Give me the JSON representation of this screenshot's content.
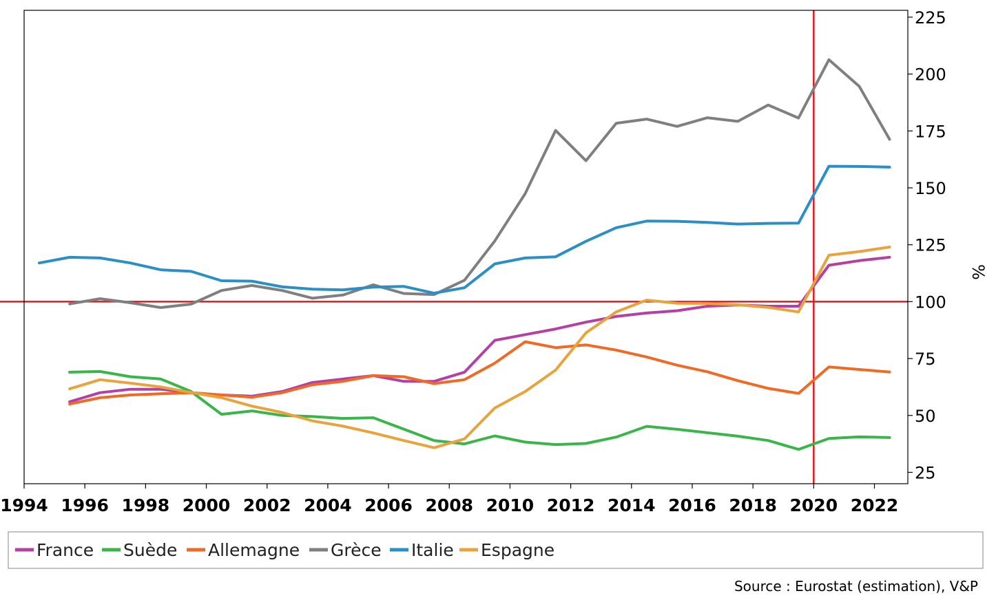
{
  "chart_data": {
    "type": "line",
    "ylabel": "%",
    "xlim": [
      1994,
      2023.1
    ],
    "ylim": [
      20,
      228
    ],
    "x_ticks": [
      "1994",
      "1996",
      "1998",
      "2000",
      "2002",
      "2004",
      "2006",
      "2008",
      "2010",
      "2012",
      "2014",
      "2016",
      "2018",
      "2020",
      "2022"
    ],
    "y_ticks": [
      "25",
      "50",
      "75",
      "100",
      "125",
      "150",
      "175",
      "200",
      "225"
    ],
    "reference_lines": {
      "horizontal_y": 100,
      "vertical_x": 2020,
      "color": "#e8161b"
    },
    "legend_position": "bottom",
    "source": "Source : Eurostat (estimation), V&P",
    "series": [
      {
        "name": "France",
        "color": "#b440a5",
        "x": [
          1995.5,
          1996.5,
          1997.5,
          1998.5,
          1999.5,
          2000.5,
          2001.5,
          2002.5,
          2003.5,
          2004.5,
          2005.5,
          2006.5,
          2007.5,
          2008.5,
          2009.5,
          2010.5,
          2011.5,
          2012.5,
          2013.5,
          2014.5,
          2015.5,
          2016.5,
          2017.5,
          2018.5,
          2019.5,
          2020.5,
          2021.5,
          2022.5
        ],
        "values": [
          56,
          60,
          61.5,
          61.5,
          60,
          59,
          58.5,
          60.5,
          64.5,
          66,
          67.5,
          65,
          65,
          69,
          83,
          85.5,
          88,
          91,
          93.5,
          95,
          96,
          98,
          98.5,
          98,
          98,
          116,
          118,
          119.5
        ]
      },
      {
        "name": "Suède",
        "color": "#3ab54a",
        "x": [
          1995.5,
          1996.5,
          1997.5,
          1998.5,
          1999.5,
          2000.5,
          2001.5,
          2002.5,
          2003.5,
          2004.5,
          2005.5,
          2006.5,
          2007.5,
          2008.5,
          2009.5,
          2010.5,
          2011.5,
          2012.5,
          2013.5,
          2014.5,
          2015.5,
          2016.5,
          2017.5,
          2018.5,
          2019.5,
          2020.5,
          2021.5,
          2022.5
        ],
        "values": [
          69,
          69.3,
          67,
          66,
          60.5,
          50.5,
          52,
          50,
          49.5,
          48.7,
          49,
          44,
          39,
          37.5,
          41,
          38.3,
          37.2,
          37.7,
          40.5,
          45.2,
          43.9,
          42.4,
          40.9,
          39,
          35.1,
          39.9,
          40.6,
          40.3
        ]
      },
      {
        "name": "Allemagne",
        "color": "#ef6a24",
        "x": [
          1995.5,
          1996.5,
          1997.5,
          1998.5,
          1999.5,
          2000.5,
          2001.5,
          2002.5,
          2003.5,
          2004.5,
          2005.5,
          2006.5,
          2007.5,
          2008.5,
          2009.5,
          2010.5,
          2011.5,
          2012.5,
          2013.5,
          2014.5,
          2015.5,
          2016.5,
          2017.5,
          2018.5,
          2019.5,
          2020.5,
          2021.5,
          2022.5
        ],
        "values": [
          55,
          57.8,
          59,
          59.5,
          60,
          59,
          58,
          60,
          63.5,
          65,
          67.5,
          67,
          64,
          65.7,
          73,
          82.4,
          79.8,
          81,
          78.7,
          75.7,
          72.1,
          69.2,
          65.3,
          61.9,
          59.7,
          71.3,
          70.2,
          69.1
        ]
      },
      {
        "name": "Grèce",
        "color": "#7f7f7f",
        "x": [
          1995.5,
          1996.5,
          1997.5,
          1998.5,
          1999.5,
          2000.5,
          2001.5,
          2002.5,
          2003.5,
          2004.5,
          2005.5,
          2006.5,
          2007.5,
          2008.5,
          2009.5,
          2010.5,
          2011.5,
          2012.5,
          2013.5,
          2014.5,
          2015.5,
          2016.5,
          2017.5,
          2018.5,
          2019.5,
          2020.5,
          2021.5,
          2022.5
        ],
        "values": [
          99,
          101.3,
          99.5,
          97.4,
          98.9,
          104.9,
          107.1,
          104.9,
          101.5,
          102.9,
          107.4,
          103.6,
          103.1,
          109.4,
          126.7,
          147.5,
          175.2,
          161.9,
          178.4,
          180.2,
          177,
          180.8,
          179.2,
          186.4,
          180.7,
          206.3,
          194.6,
          171.3
        ]
      },
      {
        "name": "Italie",
        "color": "#2a8fc5",
        "x": [
          1994.5,
          1995.5,
          1996.5,
          1997.5,
          1998.5,
          1999.5,
          2000.5,
          2001.5,
          2002.5,
          2003.5,
          2004.5,
          2005.5,
          2006.5,
          2007.5,
          2008.5,
          2009.5,
          2010.5,
          2011.5,
          2012.5,
          2013.5,
          2014.5,
          2015.5,
          2016.5,
          2017.5,
          2018.5,
          2019.5,
          2020.5,
          2021.5,
          2022.5
        ],
        "values": [
          117,
          119.5,
          119.2,
          117,
          114,
          113.3,
          109.2,
          109,
          106.5,
          105.5,
          105.2,
          106.4,
          106.7,
          103.7,
          106.1,
          116.6,
          119.2,
          119.7,
          126.5,
          132.5,
          135.4,
          135.3,
          134.8,
          134.1,
          134.4,
          134.5,
          159.5,
          159.4,
          159.1
        ]
      },
      {
        "name": "Espagne",
        "color": "#e8a33d",
        "x": [
          1995.5,
          1996.5,
          1997.5,
          1998.5,
          1999.5,
          2000.5,
          2001.5,
          2002.5,
          2003.5,
          2004.5,
          2005.5,
          2006.5,
          2007.5,
          2008.5,
          2009.5,
          2010.5,
          2011.5,
          2012.5,
          2013.5,
          2014.5,
          2015.5,
          2016.5,
          2017.5,
          2018.5,
          2019.5,
          2020.5,
          2021.5,
          2022.5
        ],
        "values": [
          61.7,
          65.7,
          64.2,
          62.5,
          60.1,
          57.8,
          54.1,
          51.3,
          47.6,
          45.3,
          42.3,
          39,
          35.8,
          39.7,
          53.3,
          60.5,
          69.9,
          86.3,
          95.5,
          100.7,
          99.3,
          99.2,
          98.6,
          97.5,
          95.5,
          120.4,
          122,
          124
        ]
      }
    ]
  }
}
